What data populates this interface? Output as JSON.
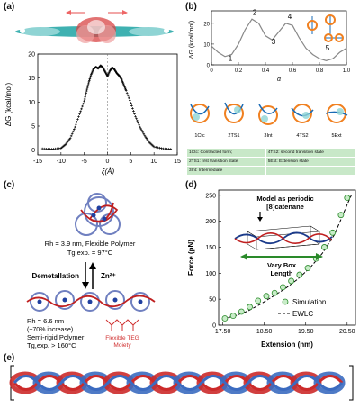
{
  "panels": {
    "a": "(a)",
    "b": "(b)",
    "c": "(c)",
    "d": "(d)",
    "e": "(e)"
  },
  "panel_a": {
    "ylabel": "ΔG (kcal/mol)",
    "xlabel": "ξ(Å)",
    "xticks": [
      "-15",
      "-10",
      "-5",
      "0",
      "5",
      "10",
      "15"
    ],
    "yticks": [
      "0",
      "5",
      "10",
      "15",
      "20"
    ]
  },
  "panel_b": {
    "ylabel": "ΔG (kcal/mol)",
    "xlabel": "α",
    "xticks": [
      "0",
      "0.2",
      "0.4",
      "0.6",
      "0.8",
      "1.0"
    ],
    "yticks": [
      "0",
      "10",
      "20"
    ],
    "points": [
      "1",
      "2",
      "3",
      "4",
      "5"
    ],
    "states": [
      "1Ctc",
      "2TS1",
      "3Int",
      "4TS2",
      "5Ext"
    ],
    "legend_rows": [
      [
        "1Ctc: Contracted form;",
        "4TS2: second transition state"
      ],
      [
        "2TS1: first transition state",
        "5Ext: Extension state"
      ],
      [
        "3Int: Intermediate",
        ""
      ]
    ]
  },
  "panel_c": {
    "top_rh": "Rh = 3.9 nm, Flexible Polymer",
    "top_tg": "Tg,exp. = 97°C",
    "demetallation": "Demetallation",
    "zn": "Zn²⁺",
    "bottom_rh": "Rh = 6.6 nm",
    "bottom_increase": "(~70% increase)",
    "bottom_type": "Semi-rigid Polymer",
    "bottom_tg": "Tg,exp. > 160°C",
    "teg": "Flexible TEG",
    "moiety": "Moiety"
  },
  "panel_d": {
    "ylabel": "Force (pN)",
    "xlabel": "Extension (nm)",
    "xticks": [
      "17.50",
      "18.50",
      "19.50",
      "20.50"
    ],
    "yticks": [
      "0",
      "50",
      "100",
      "150",
      "200",
      "250"
    ],
    "model_line1": "Model as periodic",
    "model_line2": "[8]catenane",
    "vary_line1": "Vary Box",
    "vary_line2": "Length",
    "legend_sim": "Simulation",
    "legend_ewlc": "EWLC"
  },
  "chart_data": [
    {
      "type": "line",
      "panel": "a",
      "xlabel": "ξ(Å)",
      "ylabel": "ΔG (kcal/mol)",
      "xlim": [
        -15,
        15
      ],
      "ylim": [
        -1,
        20
      ],
      "x": [
        -14,
        -12,
        -10,
        -9,
        -8,
        -7,
        -6,
        -5,
        -4.5,
        -4,
        -3.5,
        -3,
        -2.5,
        -2,
        -1.5,
        -1,
        -0.5,
        0,
        0.5,
        1,
        1.5,
        2,
        2.5,
        3,
        3.5,
        4,
        5,
        6,
        7,
        8,
        9,
        10,
        12,
        14
      ],
      "y": [
        0.3,
        0.2,
        0.4,
        1.2,
        2.5,
        4.8,
        7.5,
        10.2,
        12.3,
        14.2,
        15.8,
        16.9,
        17.3,
        17.0,
        17.6,
        17.2,
        16.3,
        15.4,
        16.5,
        17.2,
        16.8,
        16.0,
        15.5,
        14.8,
        13.6,
        12.4,
        9.8,
        7.0,
        4.8,
        3.0,
        1.6,
        0.7,
        0.3,
        0.2
      ]
    },
    {
      "type": "line",
      "panel": "b",
      "xlabel": "α",
      "ylabel": "ΔG (kcal/mol)",
      "xlim": [
        0,
        1.0
      ],
      "ylim": [
        0,
        26
      ],
      "x": [
        0,
        0.05,
        0.1,
        0.15,
        0.2,
        0.25,
        0.3,
        0.35,
        0.4,
        0.45,
        0.5,
        0.55,
        0.6,
        0.65,
        0.7,
        0.75,
        0.8,
        0.85,
        0.9,
        0.95,
        1.0
      ],
      "y": [
        9,
        6,
        4,
        5,
        10,
        17,
        22,
        20,
        14,
        12,
        16,
        20,
        19,
        13,
        8,
        5,
        3,
        2,
        3,
        6,
        8
      ]
    },
    {
      "type": "scatter",
      "panel": "d",
      "xlabel": "Extension (nm)",
      "ylabel": "Force (pN)",
      "xlim": [
        17.4,
        20.7
      ],
      "ylim": [
        0,
        260
      ],
      "series": [
        {
          "name": "Simulation",
          "x": [
            17.55,
            17.75,
            17.95,
            18.15,
            18.35,
            18.55,
            18.75,
            18.95,
            19.15,
            19.35,
            19.55,
            19.75,
            19.95,
            20.15,
            20.35,
            20.5
          ],
          "y": [
            13,
            18,
            26,
            35,
            47,
            56,
            62,
            73,
            85,
            97,
            110,
            128,
            150,
            178,
            212,
            245
          ]
        },
        {
          "name": "EWLC",
          "x": [
            17.5,
            17.8,
            18.1,
            18.4,
            18.7,
            19.0,
            19.3,
            19.6,
            19.9,
            20.2,
            20.5,
            20.6
          ],
          "y": [
            12,
            18,
            27,
            40,
            55,
            70,
            88,
            110,
            138,
            175,
            232,
            250
          ]
        }
      ]
    }
  ]
}
